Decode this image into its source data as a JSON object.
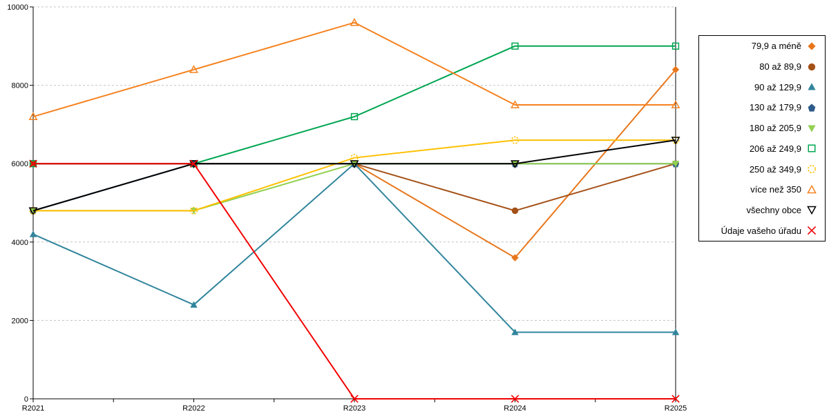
{
  "chart_data": {
    "type": "line",
    "title": "",
    "xlabel": "",
    "ylabel": "",
    "categories": [
      "R2021",
      "R2022",
      "R2023",
      "R2024",
      "R2025"
    ],
    "series": [
      {
        "name": "79,9 a méně",
        "color": "#E8761B",
        "marker": "diamond",
        "filled": true,
        "values": [
          6000,
          6000,
          6000,
          3600,
          8400
        ]
      },
      {
        "name": "80 až 89,9",
        "color": "#A45117",
        "marker": "circle",
        "filled": true,
        "values": [
          6000,
          6000,
          6000,
          4800,
          6000
        ]
      },
      {
        "name": "90 až 129,9",
        "color": "#31859C",
        "marker": "triangle-up",
        "filled": true,
        "values": [
          4200,
          2400,
          6000,
          1700,
          1700
        ]
      },
      {
        "name": "130 až 179,9",
        "color": "#2E5C8A",
        "marker": "pentagon",
        "filled": true,
        "values": [
          4800,
          6000,
          6000,
          6000,
          6000
        ]
      },
      {
        "name": "180 až 205,9",
        "color": "#92D050",
        "marker": "triangle-down",
        "filled": true,
        "values": [
          4800,
          4800,
          6000,
          6000,
          6000
        ]
      },
      {
        "name": "206 až 249,9",
        "color": "#00A651",
        "marker": "square",
        "filled": false,
        "values": [
          6000,
          6000,
          7200,
          9000,
          9000
        ]
      },
      {
        "name": "250 až 349,9",
        "color": "#FFC000",
        "marker": "circle-dashed",
        "filled": false,
        "values": [
          4800,
          4800,
          6150,
          6600,
          6600
        ]
      },
      {
        "name": "více než 350",
        "color": "#F5821F",
        "marker": "triangle-up",
        "filled": false,
        "values": [
          7200,
          8400,
          9600,
          7500,
          7500
        ]
      },
      {
        "name": "všechny obce",
        "color": "#000000",
        "marker": "triangle-down",
        "filled": false,
        "values": [
          4800,
          6000,
          6000,
          6000,
          6600
        ]
      },
      {
        "name": "Údaje vašeho úřadu",
        "color": "#F20000",
        "marker": "x",
        "filled": false,
        "values": [
          6000,
          6000,
          0,
          0,
          0
        ]
      }
    ],
    "ylim": [
      0,
      10000
    ],
    "yticks": [
      0,
      2000,
      4000,
      6000,
      8000,
      10000
    ],
    "grid": "horizontal-dashed",
    "gridline_color": "#C3C3C3",
    "axis_color": "#000000",
    "legend_position": "right"
  }
}
